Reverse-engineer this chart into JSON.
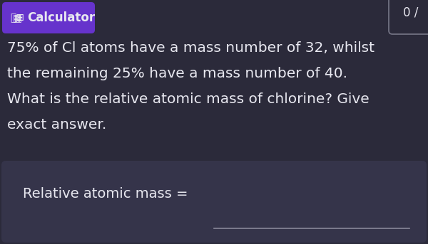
{
  "bg_color": "#2b2a3a",
  "text_color": "#e8e8f0",
  "btn_bg_color": "#6633cc",
  "body_lines": [
    "75% of Cl atoms have a mass number of 32, whilst",
    "the remaining 25% have a mass number of 40.",
    "What is the relative atomic mass of chlorine? Give",
    "exact answer."
  ],
  "answer_box_bg": "#35344a",
  "answer_label": "Relative atomic mass =",
  "answer_line_color": "#888899",
  "corner_box_text": "0 /",
  "corner_box_bg": "#35344a",
  "corner_box_edge": "#777788",
  "body_fontsize": 14.5,
  "answer_fontsize": 14,
  "btn_fontsize": 12
}
